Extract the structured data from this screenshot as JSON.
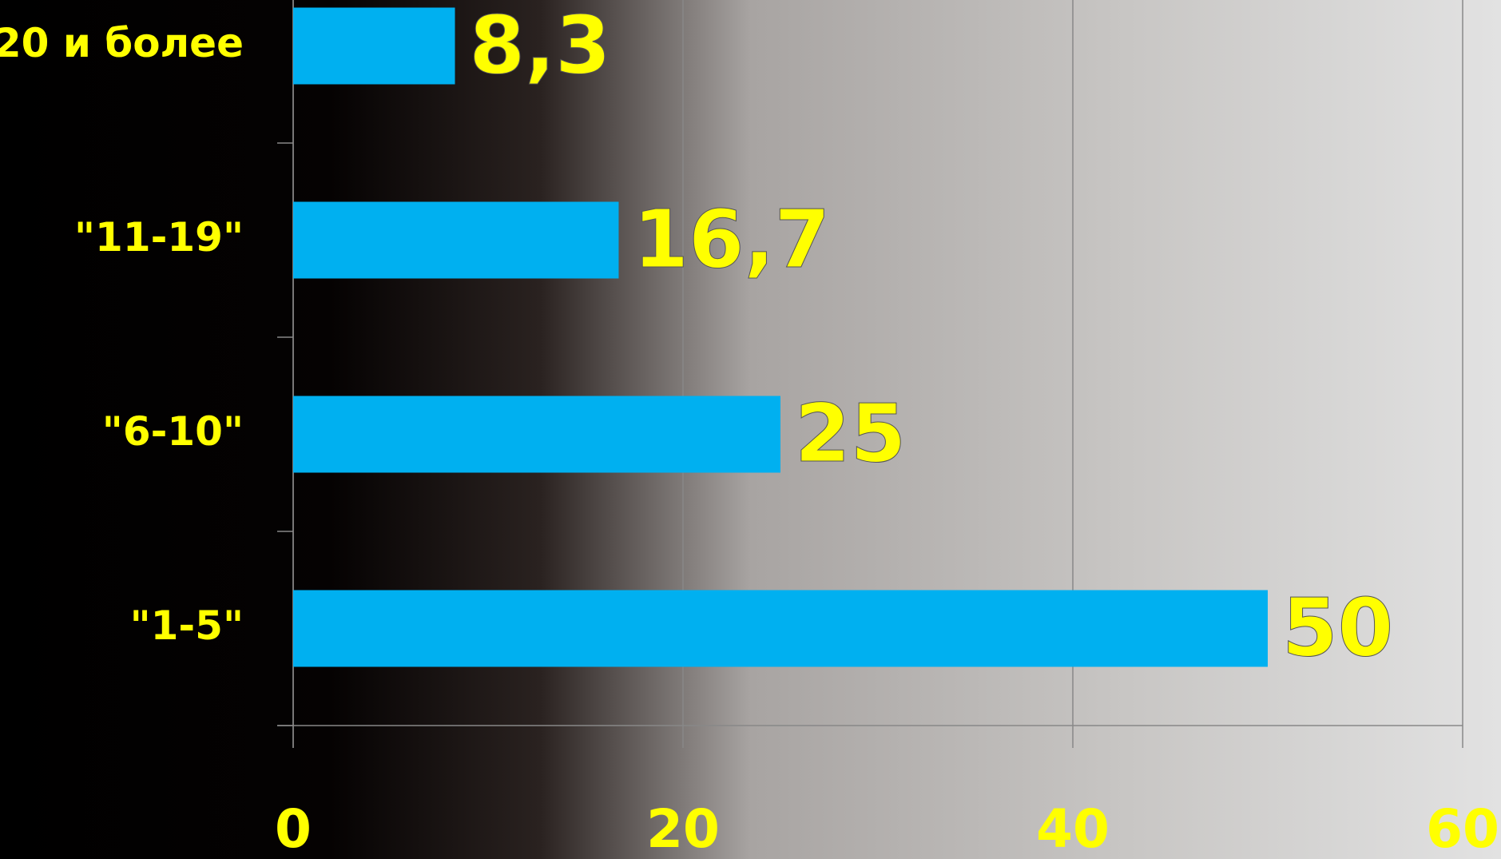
{
  "chart_data": {
    "type": "barh",
    "categories": [
      "20 и более",
      "\"11-19\"",
      "\"6-10\"",
      "\"1-5\""
    ],
    "values": [
      8.3,
      16.7,
      25,
      50
    ],
    "value_labels": [
      "8,3",
      "16,7",
      "25",
      "50"
    ],
    "color": "#00b0f0",
    "xlim": [
      0,
      60
    ],
    "xticks": [
      0,
      20,
      40,
      60
    ],
    "grid": true
  }
}
